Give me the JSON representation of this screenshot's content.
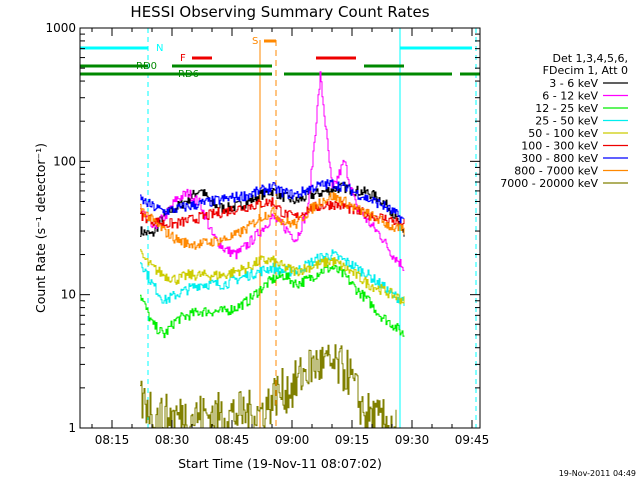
{
  "chart_data": {
    "type": "line",
    "title": "HESSI Observing Summary Count Rates",
    "xlabel": "Start Time (19-Nov-11 08:07:02)",
    "ylabel": "Count Rate (s⁻¹ detector⁻¹)",
    "y_scale": "log",
    "ylim": [
      1,
      1000
    ],
    "xlim": [
      "08:07",
      "09:47"
    ],
    "x_ticks": [
      "08:15",
      "08:30",
      "08:45",
      "09:00",
      "09:15",
      "09:30",
      "09:45"
    ],
    "y_ticks": [
      "1",
      "10",
      "100",
      "1000"
    ],
    "grid": false,
    "footer_timestamp": "19-Nov-2011 04:49",
    "legend": {
      "placement": "right",
      "header": [
        "Det 1,3,4,5,6,",
        "FDecim 1, Att 0"
      ],
      "entries": [
        {
          "label": "3 - 6 keV",
          "color": "#000000"
        },
        {
          "label": "6 - 12 keV",
          "color": "#ff00ff"
        },
        {
          "label": "12 - 25 keV",
          "color": "#00ee00"
        },
        {
          "label": "25 - 50 keV",
          "color": "#00eeee"
        },
        {
          "label": "50 - 100 keV",
          "color": "#cccc00"
        },
        {
          "label": "100 - 300 keV",
          "color": "#ee0000"
        },
        {
          "label": "300 - 800 keV",
          "color": "#0000ff"
        },
        {
          "label": "800 - 7000 keV",
          "color": "#ff8800"
        },
        {
          "label": "7000 - 20000 keV",
          "color": "#808000"
        }
      ]
    },
    "flag_labels": {
      "night": "N",
      "saa": "S",
      "flare": "F",
      "rd0": "RD0",
      "rd6": "RD6"
    },
    "flag_colors": {
      "night": "#00ffff",
      "saa": "#ff8800",
      "flare": "#ee0000",
      "rd": "#008800"
    },
    "flags": {
      "night": [
        [
          "08:07",
          "08:24"
        ],
        [
          "09:27",
          "09:45"
        ]
      ],
      "saa": [
        [
          "08:53",
          "08:56"
        ]
      ],
      "flare": [
        [
          "08:35",
          "08:40"
        ],
        [
          "09:06",
          "09:16"
        ]
      ],
      "rd0": [
        [
          "08:07",
          "08:24"
        ],
        [
          "08:30",
          "08:55"
        ],
        [
          "09:18",
          "09:28"
        ]
      ],
      "rd6": [
        [
          "08:07",
          "08:30"
        ],
        [
          "08:30",
          "08:55"
        ],
        [
          "08:58",
          "09:18"
        ],
        [
          "09:18",
          "09:40"
        ],
        [
          "09:42",
          "09:47"
        ]
      ]
    },
    "boundaries": {
      "night_dashed": [
        "08:24",
        "09:46"
      ],
      "night_solid": [
        "09:27"
      ],
      "saa_dashed": [
        "08:56"
      ],
      "saa_solid": [
        "08:52"
      ]
    },
    "data_window": [
      "08:22",
      "09:28"
    ],
    "series": [
      {
        "name": "3 - 6 keV",
        "color": "#000000",
        "x": [
          "08:22",
          "08:25",
          "08:28",
          "08:31",
          "08:34",
          "08:37",
          "08:40",
          "08:43",
          "08:46",
          "08:49",
          "08:52",
          "08:55",
          "08:58",
          "09:01",
          "09:04",
          "09:07",
          "09:10",
          "09:13",
          "09:16",
          "09:19",
          "09:22",
          "09:25",
          "09:28"
        ],
        "y": [
          30,
          28,
          40,
          45,
          52,
          62,
          48,
          44,
          46,
          50,
          56,
          60,
          54,
          50,
          55,
          58,
          62,
          64,
          60,
          58,
          52,
          42,
          28
        ]
      },
      {
        "name": "6 - 12 keV",
        "color": "#ff00ff",
        "x": [
          "08:22",
          "08:25",
          "08:28",
          "08:31",
          "08:34",
          "08:37",
          "08:40",
          "08:43",
          "08:46",
          "08:49",
          "08:52",
          "08:55",
          "08:58",
          "09:01",
          "09:04",
          "09:07",
          "09:10",
          "09:13",
          "09:16",
          "09:19",
          "09:22",
          "09:25",
          "09:28"
        ],
        "y": [
          45,
          32,
          38,
          52,
          58,
          48,
          28,
          22,
          20,
          24,
          30,
          38,
          32,
          26,
          45,
          440,
          60,
          100,
          45,
          35,
          28,
          20,
          16
        ]
      },
      {
        "name": "12 - 25 keV",
        "color": "#00ee00",
        "x": [
          "08:22",
          "08:25",
          "08:28",
          "08:31",
          "08:34",
          "08:37",
          "08:40",
          "08:43",
          "08:46",
          "08:49",
          "08:52",
          "08:55",
          "08:58",
          "09:01",
          "09:04",
          "09:07",
          "09:10",
          "09:13",
          "09:16",
          "09:19",
          "09:22",
          "09:25",
          "09:28"
        ],
        "y": [
          10,
          6,
          5,
          6.5,
          7,
          7.5,
          7.5,
          7.5,
          8,
          9,
          11,
          13,
          14,
          12,
          13,
          15,
          16,
          14,
          11,
          9,
          7,
          6,
          5
        ]
      },
      {
        "name": "25 - 50 keV",
        "color": "#00eeee",
        "x": [
          "08:22",
          "08:25",
          "08:28",
          "08:31",
          "08:34",
          "08:37",
          "08:40",
          "08:43",
          "08:46",
          "08:49",
          "08:52",
          "08:55",
          "08:58",
          "09:01",
          "09:04",
          "09:07",
          "09:10",
          "09:13",
          "09:16",
          "09:19",
          "09:22",
          "09:25",
          "09:28"
        ],
        "y": [
          18,
          12,
          9,
          10,
          11,
          12,
          12,
          12,
          13,
          14,
          15,
          16,
          15,
          15,
          17,
          19,
          20,
          18,
          16,
          14,
          12,
          10,
          9
        ]
      },
      {
        "name": "50 - 100 keV",
        "color": "#cccc00",
        "x": [
          "08:22",
          "08:25",
          "08:28",
          "08:31",
          "08:34",
          "08:37",
          "08:40",
          "08:43",
          "08:46",
          "08:49",
          "08:52",
          "08:55",
          "08:58",
          "09:01",
          "09:04",
          "09:07",
          "09:10",
          "09:13",
          "09:16",
          "09:19",
          "09:22",
          "09:25",
          "09:28"
        ],
        "y": [
          20,
          16,
          14,
          13,
          14,
          14,
          14,
          14,
          15,
          16,
          18,
          18,
          16,
          15,
          16,
          17,
          18,
          16,
          14,
          12,
          11,
          10,
          9
        ]
      },
      {
        "name": "100 - 300 keV",
        "color": "#ee0000",
        "x": [
          "08:22",
          "08:25",
          "08:28",
          "08:31",
          "08:34",
          "08:37",
          "08:40",
          "08:43",
          "08:46",
          "08:49",
          "08:52",
          "08:55",
          "08:58",
          "09:01",
          "09:04",
          "09:07",
          "09:10",
          "09:13",
          "09:16",
          "09:19",
          "09:22",
          "09:25",
          "09:28"
        ],
        "y": [
          40,
          36,
          34,
          34,
          36,
          38,
          40,
          42,
          44,
          46,
          48,
          50,
          40,
          38,
          44,
          46,
          48,
          46,
          42,
          40,
          38,
          36,
          34
        ]
      },
      {
        "name": "300 - 800 keV",
        "color": "#0000ff",
        "x": [
          "08:22",
          "08:25",
          "08:28",
          "08:31",
          "08:34",
          "08:37",
          "08:40",
          "08:43",
          "08:46",
          "08:49",
          "08:52",
          "08:55",
          "08:58",
          "09:01",
          "09:04",
          "09:07",
          "09:10",
          "09:13",
          "09:16",
          "09:19",
          "09:22",
          "09:25",
          "09:28"
        ],
        "y": [
          52,
          46,
          42,
          44,
          46,
          48,
          50,
          52,
          54,
          56,
          60,
          64,
          58,
          56,
          62,
          66,
          68,
          64,
          58,
          52,
          48,
          42,
          36
        ]
      },
      {
        "name": "800 - 7000 keV",
        "color": "#ff8800",
        "x": [
          "08:22",
          "08:25",
          "08:28",
          "08:31",
          "08:34",
          "08:37",
          "08:40",
          "08:43",
          "08:46",
          "08:49",
          "08:52",
          "08:55",
          "08:58",
          "09:01",
          "09:04",
          "09:07",
          "09:10",
          "09:13",
          "09:16",
          "09:19",
          "09:22",
          "09:25",
          "09:28"
        ],
        "y": [
          45,
          36,
          30,
          26,
          24,
          24,
          25,
          26,
          28,
          32,
          38,
          42,
          35,
          34,
          42,
          50,
          55,
          50,
          44,
          40,
          36,
          32,
          30
        ]
      },
      {
        "name": "7000 - 20000 keV",
        "color": "#808000",
        "x": [
          "08:22",
          "08:24",
          "08:26",
          "08:52",
          "08:54",
          "08:56",
          "08:58",
          "09:00",
          "09:02",
          "09:04",
          "09:06",
          "09:08",
          "09:10",
          "09:12",
          "09:14",
          "09:16",
          "09:18",
          "09:20",
          "09:22",
          "09:24",
          "09:26"
        ],
        "y": [
          1.6,
          1.5,
          1.2,
          1.3,
          1.5,
          1.8,
          1.9,
          2.0,
          2.4,
          2.8,
          3.0,
          3.0,
          2.9,
          2.8,
          2.6,
          1.8,
          1.3,
          1.2,
          1.1,
          1.1,
          1.0
        ]
      }
    ]
  }
}
